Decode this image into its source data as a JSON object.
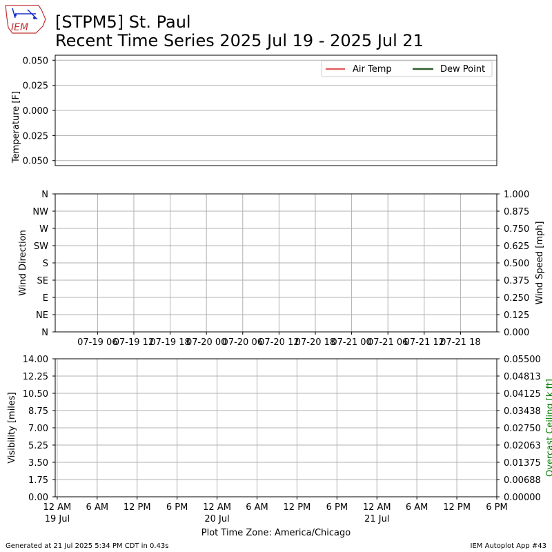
{
  "header": {
    "logo_text": "IEM",
    "title_line1": "[STPM5] St. Paul",
    "title_line2": "Recent Time Series 2025 Jul 19 - 2025 Jul 21"
  },
  "footer": {
    "generated": "Generated at 21 Jul 2025 5:34 PM CDT in 0.43s",
    "app": "IEM Autoplot App #43"
  },
  "colors": {
    "air_temp": "#e06060",
    "dew_point": "#2e5e2e",
    "ceiling_label": "#008000",
    "grid": "#b0b0b0"
  },
  "chart_data": [
    {
      "type": "line",
      "ylabel": "Temperature [F]",
      "ylim": [
        -0.055,
        0.055
      ],
      "y_ticks": [
        "0.050",
        "0.025",
        "0.000",
        "0.025",
        "0.050"
      ],
      "y_tick_values": [
        0.05,
        0.025,
        0.0,
        -0.025,
        -0.05
      ],
      "series": [
        {
          "name": "Air Temp",
          "values": []
        },
        {
          "name": "Dew Point",
          "values": []
        }
      ],
      "legend": "top-right",
      "grid": "horizontal"
    },
    {
      "type": "scatter",
      "ylabel": "Wind Direction",
      "y_ticks": [
        "N",
        "NW",
        "W",
        "SW",
        "S",
        "SE",
        "E",
        "NE",
        "N"
      ],
      "y_tick_values": [
        360,
        315,
        270,
        225,
        180,
        135,
        90,
        45,
        0
      ],
      "y2label": "Wind Speed [mph]",
      "y2_ticks": [
        "1.000",
        "0.875",
        "0.750",
        "0.625",
        "0.500",
        "0.375",
        "0.250",
        "0.125",
        "0.000"
      ],
      "y2lim": [
        0,
        1
      ],
      "x_ticks": [
        "07-19 06",
        "07-19 12",
        "07-19 18",
        "07-20 00",
        "07-20 06",
        "07-20 12",
        "07-20 18",
        "07-21 00",
        "07-21 06",
        "07-21 12",
        "07-21 18"
      ],
      "x_tick_hours": [
        6,
        12,
        18,
        24,
        30,
        36,
        42,
        48,
        54,
        60,
        66
      ],
      "xlim_hours": [
        -1,
        72
      ],
      "series": [],
      "grid": "both"
    },
    {
      "type": "line",
      "ylabel": "Visibility [miles]",
      "ylim": [
        0,
        14
      ],
      "y_ticks": [
        "14.00",
        "12.25",
        "10.50",
        "8.75",
        "7.00",
        "5.25",
        "3.50",
        "1.75",
        "0.00"
      ],
      "y2label": "Overcast Ceiling [k ft]",
      "y2lim": [
        0,
        0.055
      ],
      "y2_ticks": [
        "0.05500",
        "0.04813",
        "0.04125",
        "0.03438",
        "0.02750",
        "0.02063",
        "0.01375",
        "0.00688",
        "0.00000"
      ],
      "x_ticks": [
        "12 AM",
        "6 AM",
        "12 PM",
        "6 PM",
        "12 AM",
        "6 AM",
        "12 PM",
        "6 PM",
        "12 AM",
        "6 AM",
        "12 PM",
        "6 PM"
      ],
      "x_tick_hours": [
        0,
        6,
        12,
        18,
        24,
        30,
        36,
        42,
        48,
        54,
        60,
        66
      ],
      "x_day_labels": [
        {
          "hour": 0,
          "text": "19 Jul"
        },
        {
          "hour": 24,
          "text": "20 Jul"
        },
        {
          "hour": 48,
          "text": "21 Jul"
        }
      ],
      "xlim_hours": [
        -0.3,
        66
      ],
      "xlabel": "Plot Time Zone: America/Chicago",
      "series": [],
      "grid": "both"
    }
  ]
}
